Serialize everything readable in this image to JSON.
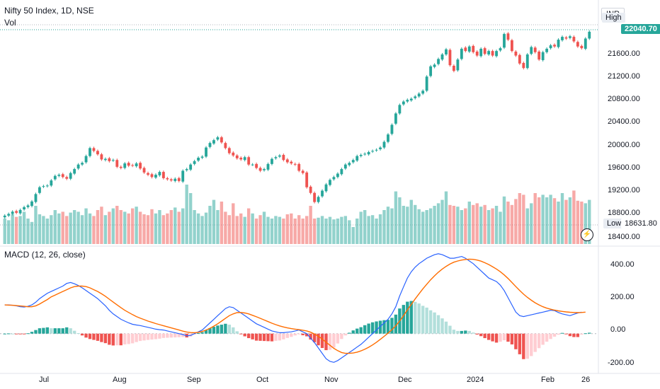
{
  "header": {
    "title": "Nifty 50 Index, 1D, NSE",
    "vol_label": "Vol",
    "currency": "INR",
    "high_label": "High",
    "low_label": "Low"
  },
  "price_tag": "22040.70",
  "low_value": "18631.80",
  "macd_title": "MACD (12, 26, close)",
  "colors": {
    "up": "#26a69a",
    "down": "#ef5350",
    "macd": "#2962ff",
    "signal": "#ff6d00"
  },
  "price_axis": [
    "21600.00",
    "21200.00",
    "20800.00",
    "20400.00",
    "20000.00",
    "19600.00",
    "19200.00",
    "18800.00",
    "18400.00"
  ],
  "macd_axis": [
    "400.00",
    "200.00",
    "0.00",
    "-200.00"
  ],
  "time_axis": [
    "Jul",
    "Aug",
    "Sep",
    "Oct",
    "Nov",
    "Dec",
    "2024",
    "Feb",
    "26"
  ],
  "chart_data": {
    "type": "candlestick",
    "y_range": [
      18300,
      22250
    ],
    "macd_range": [
      -210,
      460
    ],
    "closes": [
      18800,
      18830,
      18870,
      18850,
      18900,
      18950,
      18980,
      19050,
      19180,
      19300,
      19320,
      19330,
      19420,
      19500,
      19520,
      19480,
      19450,
      19550,
      19620,
      19700,
      19730,
      19850,
      19990,
      19940,
      19880,
      19790,
      19800,
      19760,
      19780,
      19660,
      19640,
      19720,
      19680,
      19680,
      19720,
      19630,
      19560,
      19520,
      19480,
      19520,
      19570,
      19460,
      19440,
      19420,
      19450,
      19410,
      19590,
      19620,
      19700,
      19760,
      19820,
      19840,
      20000,
      20080,
      20130,
      20180,
      20090,
      19990,
      19900,
      19860,
      19810,
      19790,
      19830,
      19700,
      19700,
      19640,
      19590,
      19620,
      19710,
      19800,
      19830,
      19860,
      19780,
      19740,
      19720,
      19700,
      19590,
      19550,
      19300,
      19200,
      19040,
      19130,
      19240,
      19350,
      19430,
      19480,
      19540,
      19620,
      19700,
      19730,
      19780,
      19850,
      19870,
      19890,
      19920,
      19940,
      19960,
      20000,
      20100,
      20230,
      20400,
      20600,
      20750,
      20810,
      20840,
      20860,
      20900,
      20950,
      21000,
      21250,
      21430,
      21460,
      21560,
      21640,
      21730,
      21450,
      21350,
      21550,
      21740,
      21700,
      21780,
      21680,
      21620,
      21740,
      21650,
      21700,
      21620,
      21700,
      21750,
      22000,
      21900,
      21700,
      21620,
      21480,
      21400,
      21640,
      21770,
      21680,
      21550,
      21680,
      21740,
      21800,
      21780,
      21900,
      21950,
      21920,
      21960,
      21870,
      21780,
      21750,
      21920,
      22040
    ],
    "opens": [
      18770,
      18800,
      18830,
      18880,
      18840,
      18910,
      18950,
      18970,
      19040,
      19200,
      19310,
      19320,
      19330,
      19440,
      19500,
      19530,
      19480,
      19450,
      19540,
      19630,
      19700,
      19740,
      19850,
      19990,
      19940,
      19880,
      19780,
      19810,
      19770,
      19780,
      19660,
      19640,
      19730,
      19690,
      19670,
      19730,
      19640,
      19550,
      19530,
      19470,
      19510,
      19570,
      19460,
      19440,
      19410,
      19460,
      19400,
      19600,
      19610,
      19710,
      19770,
      19820,
      19840,
      20010,
      20070,
      20140,
      20180,
      20080,
      19990,
      19910,
      19860,
      19820,
      19780,
      19830,
      19700,
      19710,
      19640,
      19600,
      19610,
      19710,
      19810,
      19840,
      19870,
      19790,
      19750,
      19710,
      19710,
      19590,
      19560,
      19310,
      19200,
      19040,
      19140,
      19230,
      19340,
      19440,
      19480,
      19530,
      19630,
      19690,
      19740,
      19770,
      19850,
      19880,
      19880,
      19930,
      19950,
      19970,
      20000,
      20100,
      20240,
      20420,
      20600,
      20760,
      20810,
      20830,
      20870,
      20900,
      20950,
      21000,
      21260,
      21420,
      21470,
      21550,
      21640,
      21720,
      21440,
      21360,
      21560,
      21760,
      21690,
      21790,
      21690,
      21610,
      21750,
      21640,
      21700,
      21610,
      21710,
      21760,
      22010,
      21890,
      21690,
      21630,
      21490,
      21400,
      21650,
      21760,
      21690,
      21540,
      21680,
      21750,
      21810,
      21770,
      21890,
      21940,
      21930,
      21950,
      21860,
      21790,
      21740,
      21920
    ],
    "volumes": [
      0.3,
      0.28,
      0.35,
      0.32,
      0.33,
      0.38,
      0.3,
      0.26,
      0.45,
      0.35,
      0.33,
      0.3,
      0.34,
      0.4,
      0.36,
      0.38,
      0.33,
      0.37,
      0.4,
      0.38,
      0.34,
      0.42,
      0.36,
      0.33,
      0.4,
      0.44,
      0.34,
      0.38,
      0.42,
      0.45,
      0.4,
      0.38,
      0.36,
      0.42,
      0.44,
      0.38,
      0.35,
      0.34,
      0.41,
      0.36,
      0.4,
      0.34,
      0.36,
      0.4,
      0.43,
      0.38,
      0.42,
      0.7,
      0.6,
      0.4,
      0.36,
      0.33,
      0.37,
      0.45,
      0.52,
      0.4,
      0.5,
      0.38,
      0.34,
      0.48,
      0.33,
      0.36,
      0.32,
      0.42,
      0.36,
      0.3,
      0.34,
      0.38,
      0.32,
      0.3,
      0.33,
      0.32,
      0.3,
      0.35,
      0.36,
      0.3,
      0.34,
      0.3,
      0.33,
      0.45,
      0.3,
      0.31,
      0.33,
      0.3,
      0.32,
      0.29,
      0.3,
      0.32,
      0.33,
      0.28,
      0.2,
      0.3,
      0.38,
      0.4,
      0.33,
      0.34,
      0.3,
      0.35,
      0.4,
      0.44,
      0.42,
      0.62,
      0.55,
      0.45,
      0.44,
      0.52,
      0.46,
      0.41,
      0.38,
      0.4,
      0.42,
      0.45,
      0.48,
      0.52,
      0.62,
      0.46,
      0.45,
      0.44,
      0.4,
      0.42,
      0.5,
      0.46,
      0.48,
      0.44,
      0.46,
      0.4,
      0.42,
      0.45,
      0.38,
      0.56,
      0.5,
      0.46,
      0.53,
      0.6,
      0.58,
      0.42,
      0.48,
      0.6,
      0.55,
      0.58,
      0.55,
      0.58,
      0.54,
      0.5,
      0.6,
      0.52,
      0.55,
      0.63,
      0.51,
      0.5,
      0.48,
      0.52,
      0.5,
      0.49
    ],
    "macd": [
      160,
      160,
      158,
      155,
      150,
      148,
      152,
      160,
      175,
      195,
      210,
      225,
      235,
      245,
      255,
      265,
      280,
      285,
      278,
      268,
      255,
      240,
      225,
      210,
      195,
      175,
      155,
      130,
      110,
      95,
      80,
      70,
      60,
      52,
      48,
      45,
      40,
      35,
      30,
      25,
      22,
      20,
      15,
      10,
      5,
      0,
      -5,
      -12,
      -10,
      0,
      10,
      20,
      40,
      60,
      80,
      100,
      120,
      140,
      150,
      145,
      130,
      115,
      100,
      85,
      70,
      55,
      45,
      35,
      25,
      15,
      10,
      5,
      5,
      8,
      10,
      15,
      20,
      10,
      0,
      -25,
      -50,
      -80,
      -110,
      -140,
      -155,
      -160,
      -150,
      -135,
      -120,
      -105,
      -90,
      -75,
      -60,
      -40,
      -20,
      0,
      20,
      40,
      60,
      80,
      110,
      150,
      210,
      260,
      310,
      345,
      370,
      390,
      405,
      420,
      430,
      440,
      445,
      440,
      430,
      420,
      420,
      425,
      430,
      420,
      405,
      390,
      370,
      350,
      330,
      310,
      300,
      290,
      270,
      240,
      200,
      160,
      120,
      100,
      95,
      100,
      105,
      110,
      115,
      120,
      125,
      130,
      128,
      118,
      110,
      105,
      100,
      108,
      115,
      120
    ],
    "signal": [
      160,
      159,
      158,
      156,
      154,
      152,
      150,
      150,
      155,
      165,
      178,
      190,
      205,
      215,
      225,
      235,
      245,
      255,
      262,
      265,
      265,
      262,
      255,
      245,
      235,
      222,
      208,
      192,
      176,
      160,
      145,
      130,
      118,
      106,
      95,
      86,
      78,
      70,
      63,
      56,
      50,
      44,
      38,
      32,
      26,
      20,
      14,
      9,
      6,
      5,
      7,
      12,
      20,
      30,
      42,
      55,
      70,
      85,
      100,
      110,
      117,
      118,
      115,
      110,
      102,
      94,
      85,
      76,
      67,
      58,
      50,
      43,
      37,
      32,
      28,
      25,
      22,
      19,
      15,
      8,
      -2,
      -15,
      -30,
      -48,
      -65,
      -82,
      -95,
      -105,
      -110,
      -110,
      -108,
      -103,
      -96,
      -87,
      -76,
      -63,
      -48,
      -32,
      -15,
      3,
      22,
      44,
      70,
      100,
      132,
      163,
      193,
      222,
      250,
      275,
      300,
      322,
      342,
      360,
      375,
      388,
      398,
      405,
      410,
      413,
      415,
      414,
      410,
      404,
      395,
      385,
      373,
      360,
      345,
      327,
      307,
      285,
      262,
      240,
      220,
      202,
      186,
      172,
      160,
      150,
      142,
      136,
      131,
      127,
      124,
      121,
      119,
      118,
      117,
      118,
      120
    ],
    "hist": [
      0,
      1,
      0,
      -1,
      -4,
      -4,
      2,
      10,
      20,
      30,
      32,
      35,
      30,
      30,
      30,
      30,
      35,
      30,
      16,
      3,
      -10,
      -22,
      -30,
      -35,
      -40,
      -47,
      -53,
      -62,
      -66,
      -65,
      -65,
      -60,
      -58,
      -54,
      -47,
      -41,
      -38,
      -35,
      -33,
      -31,
      -28,
      -24,
      -23,
      -22,
      -21,
      -20,
      -19,
      -21,
      -16,
      -5,
      3,
      8,
      20,
      30,
      38,
      45,
      50,
      55,
      50,
      35,
      13,
      -3,
      -15,
      -25,
      -32,
      -39,
      -40,
      -41,
      -42,
      -43,
      -40,
      -38,
      -32,
      -24,
      -18,
      -10,
      -2,
      -9,
      -15,
      -33,
      -48,
      -65,
      -80,
      -92,
      -90,
      -78,
      -55,
      -30,
      -10,
      5,
      18,
      28,
      36,
      47,
      56,
      63,
      68,
      72,
      75,
      77,
      88,
      106,
      140,
      160,
      178,
      182,
      177,
      168,
      155,
      145,
      130,
      118,
      103,
      85,
      67,
      44,
      22,
      15,
      15,
      17,
      15,
      6,
      -5,
      -14,
      -25,
      -35,
      -43,
      -50,
      -45,
      -37,
      -45,
      -60,
      -87,
      -115,
      -142,
      -140,
      -125,
      -102,
      -81,
      -62,
      -45,
      -30,
      -17,
      -6,
      4,
      -3,
      -14,
      -19,
      -19,
      -6,
      2,
      5
    ],
    "time_labels": [
      "Jul",
      "Aug",
      "Sep",
      "Oct",
      "Nov",
      "Dec",
      "2024",
      "Feb",
      "26"
    ]
  }
}
